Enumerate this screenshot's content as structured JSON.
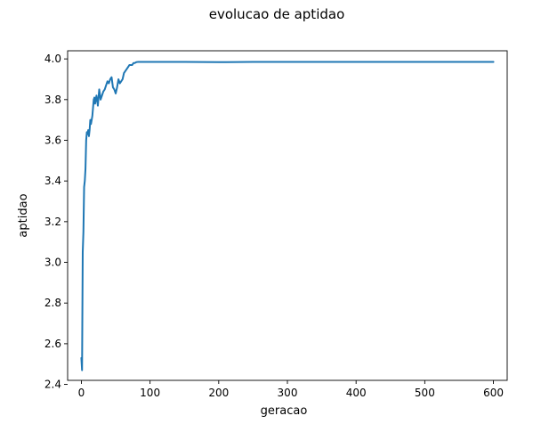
{
  "chart_data": {
    "type": "line",
    "title": "evolucao de aptidao",
    "xlabel": "geracao",
    "ylabel": "aptidao",
    "xlim": [
      -20,
      620
    ],
    "ylim": [
      2.42,
      4.04
    ],
    "xticks": [
      0,
      100,
      200,
      300,
      400,
      500,
      600
    ],
    "yticks": [
      2.4,
      2.6,
      2.8,
      3.0,
      3.2,
      3.4,
      3.6,
      3.8,
      4.0
    ],
    "ytick_labels": [
      "2.4",
      "2.6",
      "2.8",
      "3.0",
      "3.2",
      "3.4",
      "3.6",
      "3.8",
      "4.0"
    ],
    "grid": false,
    "series": [
      {
        "color": "#1f77b4",
        "x": [
          0,
          1,
          2,
          3,
          4,
          5,
          6,
          7,
          8,
          9,
          10,
          11,
          12,
          13,
          14,
          15,
          16,
          17,
          18,
          19,
          20,
          22,
          24,
          26,
          28,
          30,
          32,
          34,
          36,
          38,
          40,
          42,
          44,
          46,
          48,
          50,
          52,
          54,
          56,
          58,
          60,
          62,
          64,
          66,
          68,
          70,
          72,
          74,
          76,
          78,
          80,
          82,
          84,
          86,
          90,
          100,
          120,
          150,
          200,
          250,
          300,
          350,
          400,
          450,
          500,
          550,
          600
        ],
        "y": [
          2.53,
          2.47,
          3.05,
          3.15,
          3.37,
          3.4,
          3.46,
          3.6,
          3.64,
          3.63,
          3.65,
          3.62,
          3.65,
          3.7,
          3.68,
          3.7,
          3.72,
          3.76,
          3.8,
          3.81,
          3.78,
          3.82,
          3.77,
          3.85,
          3.8,
          3.82,
          3.84,
          3.85,
          3.87,
          3.89,
          3.88,
          3.9,
          3.91,
          3.86,
          3.85,
          3.83,
          3.86,
          3.9,
          3.88,
          3.89,
          3.9,
          3.93,
          3.94,
          3.95,
          3.96,
          3.97,
          3.97,
          3.97,
          3.98,
          3.98,
          3.984,
          3.985,
          3.985,
          3.985,
          3.985,
          3.985,
          3.985,
          3.985,
          3.984,
          3.985,
          3.985,
          3.985,
          3.985,
          3.985,
          3.985,
          3.985,
          3.985
        ]
      }
    ]
  }
}
